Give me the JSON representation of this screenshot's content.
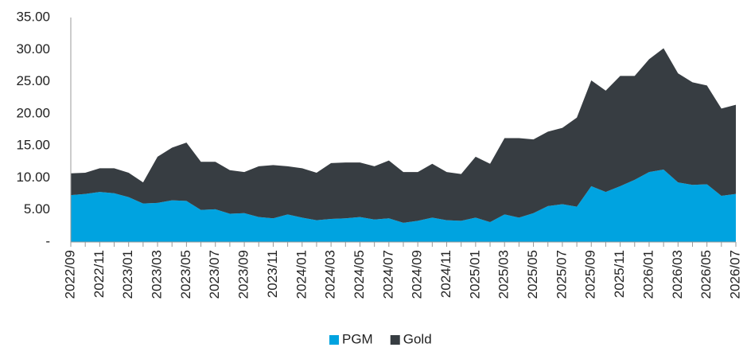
{
  "chart_data": {
    "type": "stacked-area",
    "categories": [
      "2022/09",
      null,
      "2022/11",
      null,
      "2023/01",
      null,
      "2023/03",
      null,
      "2023/05",
      null,
      "2023/07",
      null,
      "2023/09",
      null,
      "2023/11",
      null,
      "2024/01",
      null,
      "2024/03",
      null,
      "2024/05",
      null,
      "2024/07",
      null,
      "2024/09",
      null,
      "2024/11",
      null,
      "2025/01",
      null,
      "2025/03",
      null,
      "2025/05",
      null,
      "2025/07",
      null,
      "2025/09",
      null,
      "2025/11",
      null,
      "2026/01",
      null,
      "2026/03",
      null,
      "2026/05",
      null,
      "2026/07"
    ],
    "series": [
      {
        "name": "PGM",
        "color": "#00a3e0",
        "values": [
          7.3,
          7.5,
          7.8,
          7.6,
          7.0,
          6.0,
          6.1,
          6.5,
          6.4,
          5.0,
          5.1,
          4.4,
          4.5,
          3.9,
          3.7,
          4.3,
          3.8,
          3.4,
          3.6,
          3.7,
          3.9,
          3.5,
          3.7,
          3.0,
          3.3,
          3.8,
          3.4,
          3.3,
          3.8,
          3.1,
          4.3,
          3.8,
          4.5,
          5.6,
          5.9,
          5.5,
          8.7,
          7.8,
          8.7,
          9.7,
          10.9,
          11.3,
          9.3,
          8.9,
          9.0,
          7.2,
          7.5
        ]
      },
      {
        "name": "Gold",
        "color": "#373d42",
        "values": [
          3.4,
          3.3,
          3.7,
          3.9,
          3.8,
          3.3,
          7.2,
          8.2,
          9.1,
          7.5,
          7.4,
          6.8,
          6.4,
          7.9,
          8.3,
          7.5,
          7.7,
          7.4,
          8.7,
          8.7,
          8.5,
          8.3,
          9.0,
          7.9,
          7.6,
          8.4,
          7.5,
          7.3,
          9.5,
          9.1,
          11.9,
          12.4,
          11.5,
          11.6,
          11.9,
          13.9,
          16.5,
          15.8,
          17.2,
          16.2,
          17.6,
          18.9,
          17.0,
          16.0,
          15.4,
          13.6,
          13.9
        ]
      }
    ],
    "ylim": [
      0,
      35
    ],
    "yticks": [
      {
        "value": 0,
        "label": "-"
      },
      {
        "value": 5,
        "label": "5.00"
      },
      {
        "value": 10,
        "label": "10.00"
      },
      {
        "value": 15,
        "label": "15.00"
      },
      {
        "value": 20,
        "label": "20.00"
      },
      {
        "value": 25,
        "label": "25.00"
      },
      {
        "value": 30,
        "label": "30.00"
      },
      {
        "value": 35,
        "label": "35.00"
      }
    ],
    "grid": false,
    "legend": "bottom"
  }
}
